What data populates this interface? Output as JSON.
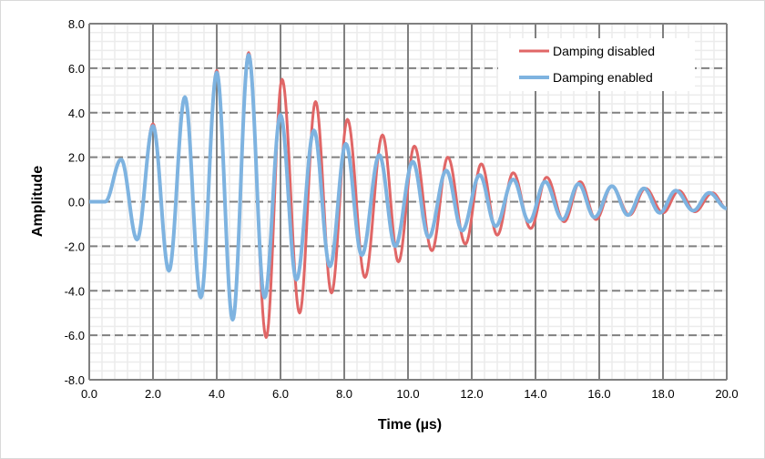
{
  "chart_data": {
    "type": "line",
    "title": "",
    "xlabel": "Time (µs)",
    "ylabel": "Amplitude",
    "xlim": [
      0,
      20
    ],
    "ylim": [
      -8,
      8
    ],
    "x_ticks": [
      "0.0",
      "2.0",
      "4.0",
      "6.0",
      "8.0",
      "10.0",
      "12.0",
      "14.0",
      "16.0",
      "18.0",
      "20.0"
    ],
    "y_ticks": [
      "8.0",
      "6.0",
      "4.0",
      "2.0",
      "0.0",
      "-2.0",
      "-4.0",
      "-6.0",
      "-8.0"
    ],
    "grid": {
      "major": true,
      "minor": true
    },
    "legend_position": "top-right",
    "series": [
      {
        "name": "Damping disabled",
        "color": "#e06666",
        "extrema": [
          [
            0,
            0
          ],
          [
            0.5,
            0
          ],
          [
            1.0,
            1.9
          ],
          [
            1.5,
            -1.7
          ],
          [
            2.0,
            3.5
          ],
          [
            2.5,
            -3.1
          ],
          [
            3.0,
            4.7
          ],
          [
            3.5,
            -4.3
          ],
          [
            4.0,
            5.9
          ],
          [
            4.5,
            -5.3
          ],
          [
            5.0,
            6.7
          ],
          [
            5.55,
            -6.1
          ],
          [
            6.05,
            5.5
          ],
          [
            6.6,
            -5.0
          ],
          [
            7.1,
            4.5
          ],
          [
            7.6,
            -4.1
          ],
          [
            8.1,
            3.7
          ],
          [
            8.65,
            -3.4
          ],
          [
            9.2,
            3.0
          ],
          [
            9.7,
            -2.7
          ],
          [
            10.2,
            2.5
          ],
          [
            10.75,
            -2.2
          ],
          [
            11.25,
            2.0
          ],
          [
            11.8,
            -1.9
          ],
          [
            12.3,
            1.7
          ],
          [
            12.8,
            -1.5
          ],
          [
            13.3,
            1.3
          ],
          [
            13.85,
            -1.2
          ],
          [
            14.35,
            1.1
          ],
          [
            14.9,
            -0.9
          ],
          [
            15.4,
            0.9
          ],
          [
            15.9,
            -0.8
          ],
          [
            16.4,
            0.7
          ],
          [
            16.95,
            -0.6
          ],
          [
            17.45,
            0.6
          ],
          [
            18.0,
            -0.5
          ],
          [
            18.5,
            0.5
          ],
          [
            19.0,
            -0.45
          ],
          [
            19.55,
            0.4
          ],
          [
            20.0,
            -0.3
          ]
        ]
      },
      {
        "name": "Damping enabled",
        "color": "#7eb3e0",
        "extrema": [
          [
            0,
            0
          ],
          [
            0.5,
            0
          ],
          [
            1.0,
            1.9
          ],
          [
            1.5,
            -1.7
          ],
          [
            2.0,
            3.4
          ],
          [
            2.5,
            -3.1
          ],
          [
            3.0,
            4.7
          ],
          [
            3.5,
            -4.3
          ],
          [
            4.0,
            5.8
          ],
          [
            4.5,
            -5.3
          ],
          [
            5.0,
            6.6
          ],
          [
            5.5,
            -4.3
          ],
          [
            6.0,
            3.9
          ],
          [
            6.5,
            -3.5
          ],
          [
            7.05,
            3.2
          ],
          [
            7.55,
            -2.9
          ],
          [
            8.05,
            2.6
          ],
          [
            8.55,
            -2.4
          ],
          [
            9.1,
            2.1
          ],
          [
            9.6,
            -2.0
          ],
          [
            10.15,
            1.8
          ],
          [
            10.65,
            -1.6
          ],
          [
            11.2,
            1.4
          ],
          [
            11.7,
            -1.3
          ],
          [
            12.25,
            1.2
          ],
          [
            12.75,
            -1.1
          ],
          [
            13.3,
            1.0
          ],
          [
            13.8,
            -0.9
          ],
          [
            14.3,
            0.9
          ],
          [
            14.85,
            -0.8
          ],
          [
            15.35,
            0.8
          ],
          [
            15.85,
            -0.7
          ],
          [
            16.4,
            0.7
          ],
          [
            16.9,
            -0.6
          ],
          [
            17.4,
            0.6
          ],
          [
            17.9,
            -0.5
          ],
          [
            18.4,
            0.5
          ],
          [
            18.95,
            -0.4
          ],
          [
            19.45,
            0.4
          ],
          [
            20.0,
            -0.3
          ]
        ]
      }
    ]
  }
}
